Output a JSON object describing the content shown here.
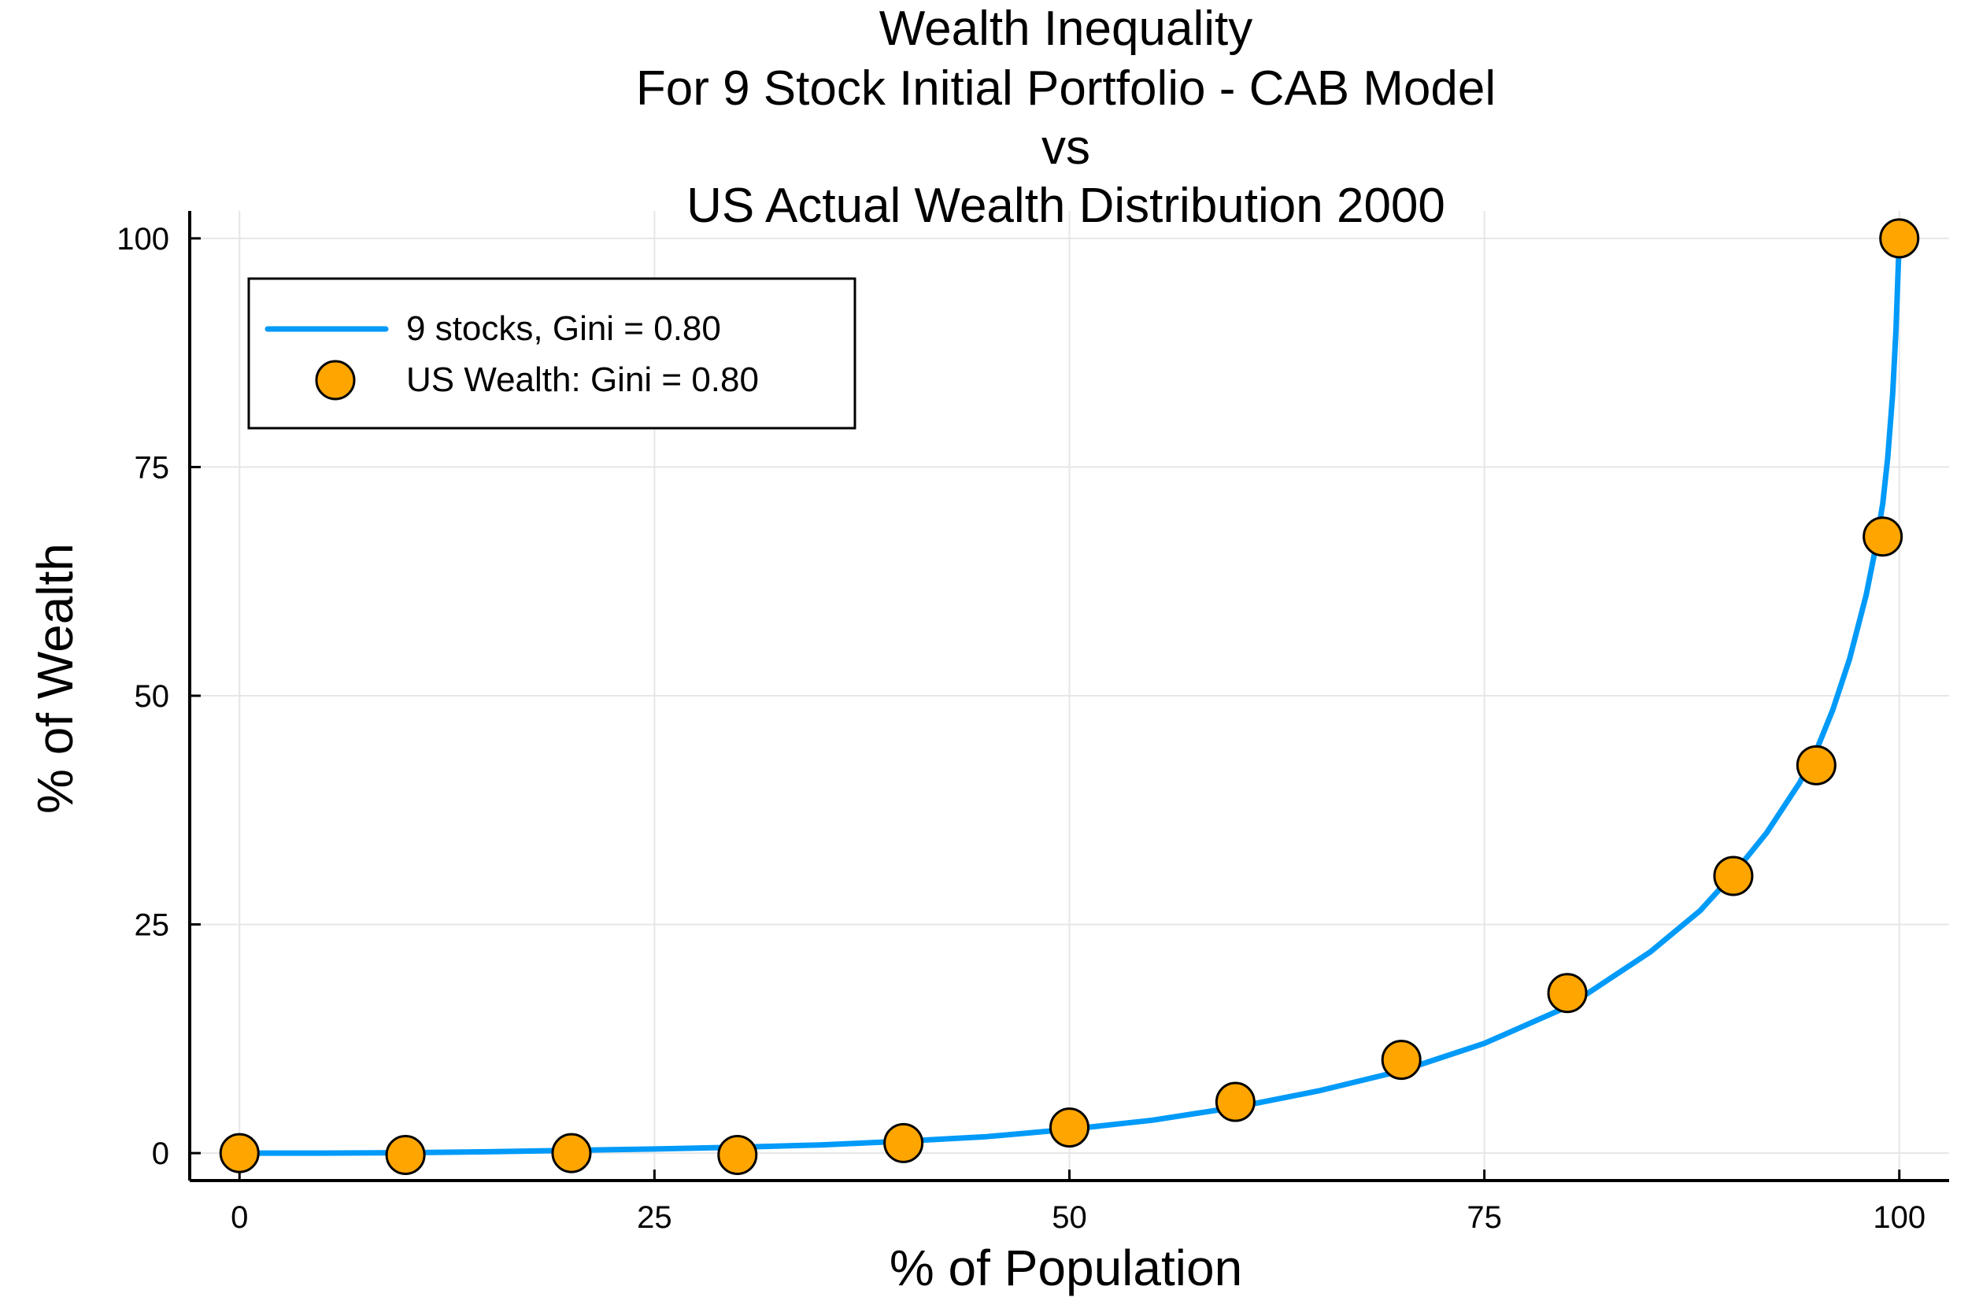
{
  "chart_data": {
    "type": "line",
    "title_lines": [
      "Wealth Inequality",
      "For 9 Stock Initial Portfolio - CAB Model",
      "vs",
      "US Actual Wealth Distribution 2000"
    ],
    "xlabel": "% of Population",
    "ylabel": "% of Wealth",
    "xlim": [
      -3,
      103
    ],
    "ylim": [
      -3,
      103
    ],
    "xticks": [
      0,
      25,
      50,
      75,
      100
    ],
    "yticks": [
      0,
      25,
      50,
      75,
      100
    ],
    "grid": true,
    "legend_position": "top-left",
    "series": [
      {
        "name": "9 stocks, Gini = 0.80",
        "kind": "line",
        "color": "#009af9",
        "x": [
          0,
          5,
          10,
          15,
          20,
          25,
          30,
          35,
          40,
          45,
          50,
          55,
          60,
          65,
          70,
          75,
          80,
          85,
          88,
          90,
          92,
          94,
          95,
          96,
          97,
          98,
          98.5,
          99,
          99.3,
          99.6,
          99.8,
          100
        ],
        "y": [
          0,
          0,
          0.05,
          0.15,
          0.3,
          0.45,
          0.65,
          0.9,
          1.3,
          1.8,
          2.6,
          3.6,
          5.0,
          6.8,
          9.0,
          12.0,
          16.0,
          22.0,
          26.5,
          30.5,
          35.0,
          40.5,
          44.0,
          48.5,
          54.0,
          61.0,
          65.5,
          71.0,
          76.0,
          83.0,
          90.0,
          100.0
        ]
      },
      {
        "name": "US Wealth: Gini = 0.80",
        "kind": "scatter",
        "color": "#ffa500",
        "x": [
          0,
          10,
          20,
          30,
          40,
          50,
          60,
          70,
          80,
          90,
          95,
          99,
          100
        ],
        "y": [
          0,
          -0.2,
          0,
          -0.2,
          1.1,
          2.8,
          5.6,
          10.2,
          17.5,
          30.3,
          42.4,
          67.4,
          100.0
        ]
      }
    ]
  }
}
